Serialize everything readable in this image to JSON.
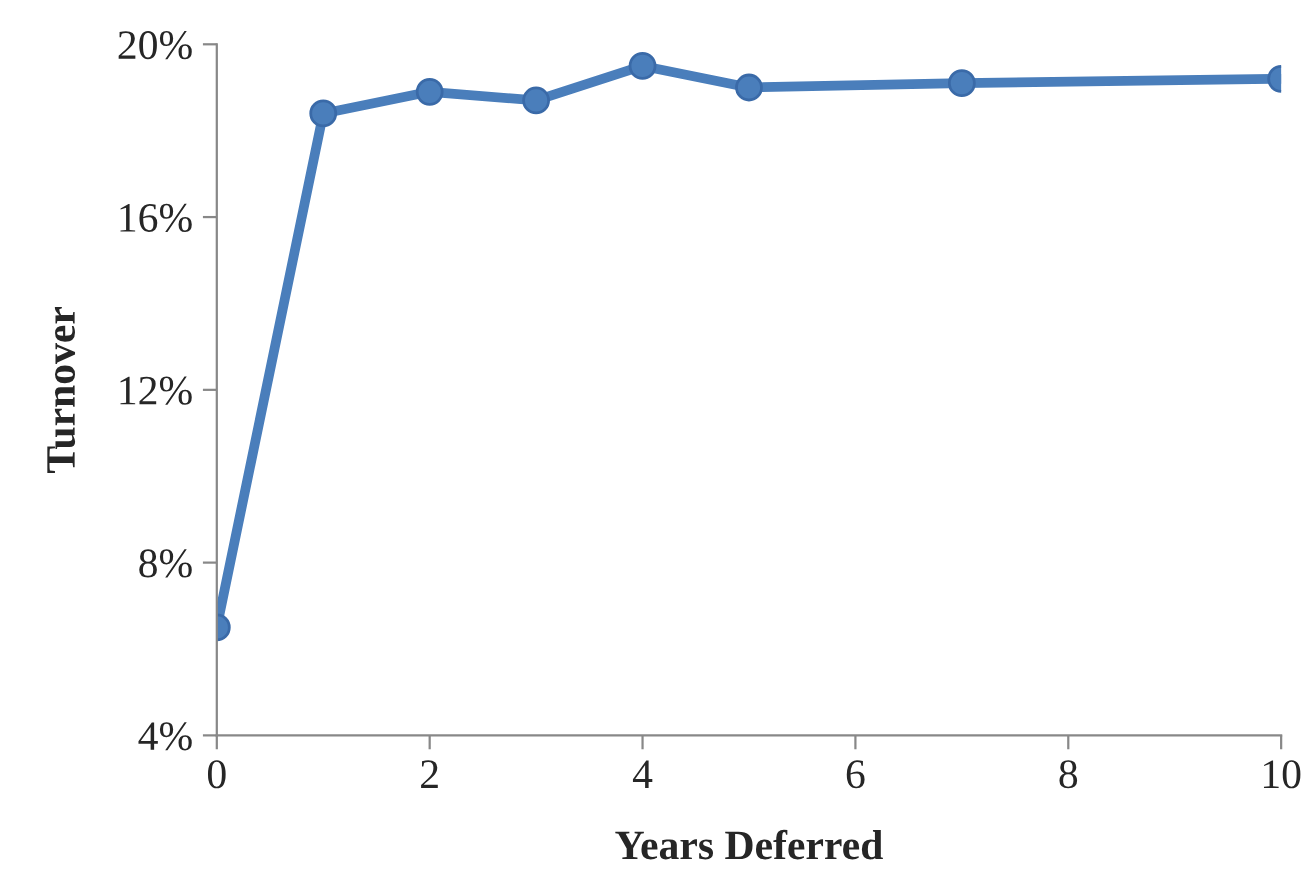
{
  "chart_data": {
    "type": "line",
    "xlabel": "Years Deferred",
    "ylabel": "Turnover",
    "x": [
      0,
      1,
      2,
      3,
      4,
      5,
      7,
      10
    ],
    "series": [
      {
        "color": "#4a7ebb",
        "values": [
          6.5,
          18.4,
          18.9,
          18.7,
          19.5,
          19.0,
          19.1,
          19.2
        ]
      }
    ],
    "xlim": [
      0,
      10
    ],
    "xticks": [
      0,
      2,
      4,
      6,
      8,
      10
    ],
    "ylim": [
      4,
      20
    ],
    "yticks": [
      {
        "value": 4,
        "label": "4%"
      },
      {
        "value": 8,
        "label": "8%"
      },
      {
        "value": 12,
        "label": "12%"
      },
      {
        "value": 16,
        "label": "16%"
      },
      {
        "value": 20,
        "label": "20%"
      }
    ],
    "grid": false,
    "marker": "circle",
    "line_style": "solid"
  }
}
